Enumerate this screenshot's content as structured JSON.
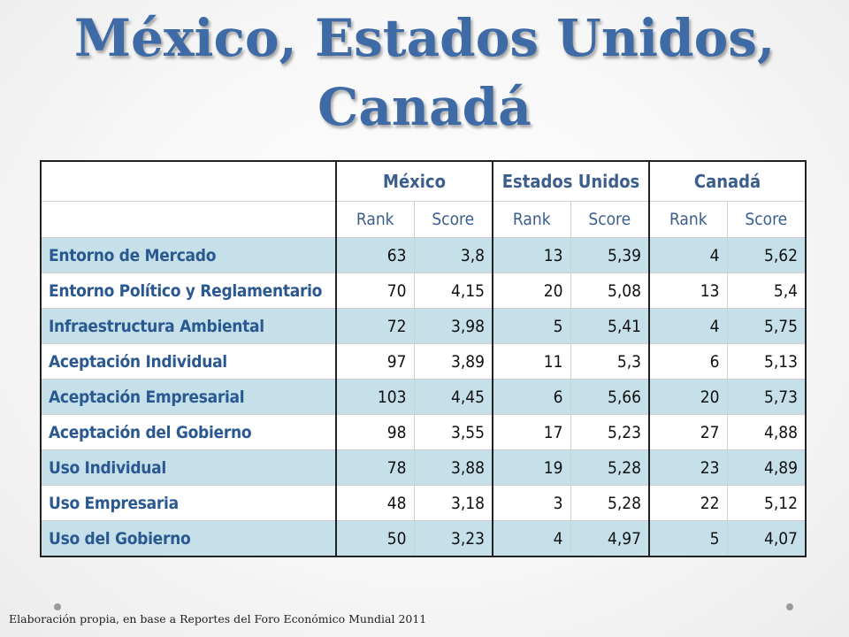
{
  "title": {
    "line1": "México, Estados Unidos,",
    "line2": "Canadá"
  },
  "table": {
    "countries": [
      "México",
      "Estados Unidos",
      "Canadá"
    ],
    "subheaders": [
      "Rank",
      "Score",
      "Rank",
      "Score",
      "Rank",
      "Score"
    ],
    "rows": [
      {
        "label": "Entorno de Mercado",
        "values": [
          "63",
          "3,8",
          "13",
          "5,39",
          "4",
          "5,62"
        ]
      },
      {
        "label": "Entorno Político y Reglamentario",
        "values": [
          "70",
          "4,15",
          "20",
          "5,08",
          "13",
          "5,4"
        ]
      },
      {
        "label": "Infraestructura Ambiental",
        "values": [
          "72",
          "3,98",
          "5",
          "5,41",
          "4",
          "5,75"
        ]
      },
      {
        "label": "Aceptación Individual",
        "values": [
          "97",
          "3,89",
          "11",
          "5,3",
          "6",
          "5,13"
        ]
      },
      {
        "label": "Aceptación Empresarial",
        "values": [
          "103",
          "4,45",
          "6",
          "5,66",
          "20",
          "5,73"
        ]
      },
      {
        "label": "Aceptación del Gobierno",
        "values": [
          "98",
          "3,55",
          "17",
          "5,23",
          "27",
          "4,88"
        ]
      },
      {
        "label": "Uso Individual",
        "values": [
          "78",
          "3,88",
          "19",
          "5,28",
          "23",
          "4,89"
        ]
      },
      {
        "label": "Uso Empresaria",
        "values": [
          "48",
          "3,18",
          "3",
          "5,28",
          "22",
          "5,12"
        ]
      },
      {
        "label": "Uso del Gobierno",
        "values": [
          "50",
          "3,23",
          "4",
          "4,97",
          "5",
          "4,07"
        ]
      }
    ]
  },
  "footer": "Elaboración propia, en base a Reportes del Foro Económico Mundial 2011",
  "colors": {
    "title": "#3e6aa5",
    "header_text": "#3b5e8c",
    "row_label": "#2a5890",
    "stripe": "#c6e0ea"
  }
}
